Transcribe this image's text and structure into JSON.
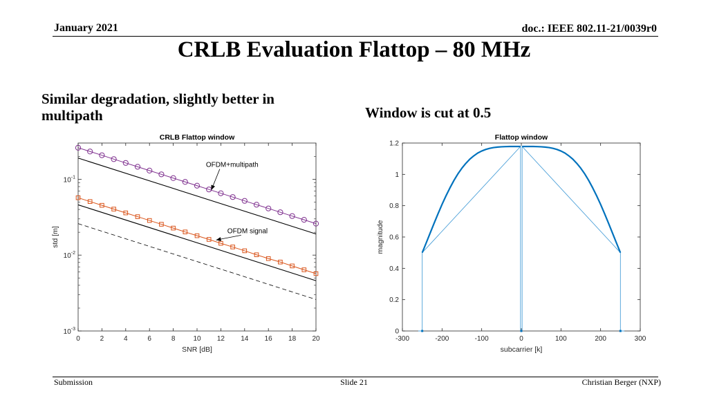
{
  "header": {
    "date": "January 2021",
    "doc_id": "doc.: IEEE 802.11-21/0039r0"
  },
  "title": "CRLB Evaluation Flattop – 80 MHz",
  "bullets": {
    "left": "Similar degradation, slightly better in multipath",
    "right": "Window is cut at 0.5"
  },
  "footer": {
    "left": "Submission",
    "center": "Slide 21",
    "right": "Christian Berger (NXP)"
  },
  "chart_data": [
    {
      "type": "line",
      "title": "CRLB Flattop window",
      "xlabel": "SNR [dB]",
      "ylabel": "std [m]",
      "yscale": "log",
      "xlim": [
        0,
        20
      ],
      "ylim": [
        0.001,
        0.3
      ],
      "x_ticks": [
        0,
        2,
        4,
        6,
        8,
        10,
        12,
        14,
        16,
        18,
        20
      ],
      "y_ticks": [
        0.001,
        0.01,
        0.1
      ],
      "y_tick_labels": [
        {
          "base": "10",
          "exp": "-3"
        },
        {
          "base": "10",
          "exp": "-2"
        },
        {
          "base": "10",
          "exp": "-1"
        }
      ],
      "series": [
        {
          "name": "OFDM+multipath",
          "color": "#7E2F8E",
          "marker": "circle",
          "x": [
            0,
            1,
            2,
            3,
            4,
            5,
            6,
            7,
            8,
            9,
            10,
            11,
            12,
            13,
            14,
            15,
            16,
            17,
            18,
            19,
            20
          ],
          "values": [
            0.26,
            0.232,
            0.207,
            0.184,
            0.164,
            0.146,
            0.13,
            0.116,
            0.1035,
            0.0922,
            0.0822,
            0.0733,
            0.0653,
            0.0582,
            0.0519,
            0.0462,
            0.0412,
            0.0367,
            0.0327,
            0.0292,
            0.026
          ]
        },
        {
          "name": "OFDM multipath bound",
          "color": "#000000",
          "marker": "none",
          "x": [
            0,
            20
          ],
          "values": [
            0.19,
            0.019
          ]
        },
        {
          "name": "OFDM signal",
          "color": "#D95319",
          "marker": "square",
          "x": [
            0,
            1,
            2,
            3,
            4,
            5,
            6,
            7,
            8,
            9,
            10,
            11,
            12,
            13,
            14,
            15,
            16,
            17,
            18,
            19,
            20
          ],
          "values": [
            0.057,
            0.0508,
            0.0453,
            0.0404,
            0.036,
            0.0321,
            0.0286,
            0.0255,
            0.0227,
            0.0202,
            0.018,
            0.0161,
            0.0143,
            0.0128,
            0.0114,
            0.0101,
            0.009,
            0.0081,
            0.0072,
            0.0064,
            0.0057
          ]
        },
        {
          "name": "OFDM signal bound",
          "color": "#000000",
          "marker": "none",
          "x": [
            0,
            20
          ],
          "values": [
            0.046,
            0.0046
          ]
        },
        {
          "name": "reference (dashed)",
          "color": "#000000",
          "marker": "none",
          "dash": true,
          "x": [
            0,
            20
          ],
          "values": [
            0.026,
            0.0026
          ]
        }
      ],
      "annotations": [
        {
          "text": "OFDM+multipath",
          "x": 12.2,
          "y": 0.145,
          "arrow_to": [
            11.2,
            0.072
          ]
        },
        {
          "text": "OFDM signal",
          "x": 14,
          "y": 0.0195,
          "arrow_to": [
            11.6,
            0.0158
          ]
        }
      ]
    },
    {
      "type": "line",
      "title": "Flattop window",
      "xlabel": "subcarrier [k]",
      "ylabel": "magnitude",
      "xlim": [
        -300,
        300
      ],
      "ylim": [
        0,
        1.2
      ],
      "x_ticks": [
        -300,
        -200,
        -100,
        0,
        100,
        200,
        300
      ],
      "y_ticks": [
        0,
        0.2,
        0.4,
        0.6,
        0.8,
        1,
        1.2
      ],
      "series": [
        {
          "name": "flattop (thick)",
          "color": "#0072BD",
          "x": [
            -250,
            -240,
            -230,
            -220,
            -210,
            -200,
            -190,
            -180,
            -170,
            -160,
            -150,
            -140,
            -130,
            -120,
            -110,
            -100,
            -90,
            -80,
            -70,
            -60,
            -50,
            -40,
            -30,
            -20,
            -10,
            -2
          ],
          "values": [
            0.5,
            0.562,
            0.625,
            0.688,
            0.749,
            0.808,
            0.863,
            0.914,
            0.961,
            1.003,
            1.039,
            1.07,
            1.097,
            1.118,
            1.136,
            1.149,
            1.159,
            1.166,
            1.171,
            1.174,
            1.176,
            1.177,
            1.178,
            1.178,
            1.178,
            1.178
          ],
          "mirrored": true
        },
        {
          "name": "cut-off (thin)",
          "color": "#4A9FD8",
          "x": [
            -260,
            -250,
            -250,
            -2,
            -2,
            2,
            2,
            250,
            250,
            260
          ],
          "values": [
            0,
            0,
            0.5,
            1.178,
            0,
            0,
            1.178,
            0.5,
            0,
            0
          ]
        }
      ]
    }
  ]
}
